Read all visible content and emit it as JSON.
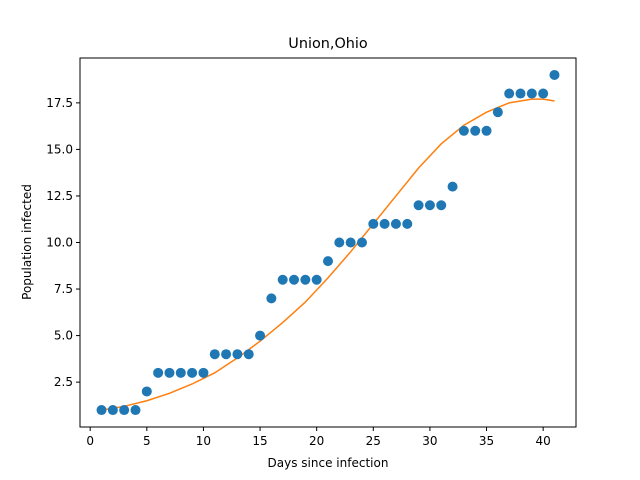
{
  "chart_data": {
    "type": "scatter",
    "title": "Union,Ohio",
    "xlabel": "Days since infection",
    "ylabel": "Population infected",
    "xlim": [
      -0.9,
      42.9
    ],
    "ylim": [
      0.09,
      19.91
    ],
    "xticks": [
      0,
      5,
      10,
      15,
      20,
      25,
      30,
      35,
      40
    ],
    "yticks": [
      2.5,
      5.0,
      7.5,
      10.0,
      12.5,
      15.0,
      17.5
    ],
    "ytick_labels": [
      "2.5",
      "5.0",
      "7.5",
      "10.0",
      "12.5",
      "15.0",
      "17.5"
    ],
    "grid": false,
    "series": [
      {
        "kind": "points",
        "color": "#1f77b4",
        "x": [
          1,
          2,
          3,
          4,
          5,
          6,
          7,
          8,
          9,
          10,
          11,
          12,
          13,
          14,
          15,
          16,
          17,
          18,
          19,
          20,
          21,
          22,
          23,
          24,
          25,
          26,
          27,
          28,
          29,
          30,
          31,
          32,
          33,
          34,
          35,
          36,
          37,
          38,
          39,
          40,
          41
        ],
        "y": [
          1,
          1,
          1,
          1,
          2,
          3,
          3,
          3,
          3,
          3,
          4,
          4,
          4,
          4,
          5,
          7,
          8,
          8,
          8,
          8,
          9,
          10,
          10,
          10,
          11,
          11,
          11,
          11,
          12,
          12,
          12,
          13,
          16,
          16,
          16,
          17,
          18,
          18,
          18,
          18,
          19
        ]
      },
      {
        "kind": "line",
        "color": "#ff7f0e",
        "x": [
          1,
          3,
          5,
          7,
          9,
          11,
          13,
          15,
          17,
          19,
          21,
          23,
          25,
          27,
          29,
          31,
          33,
          35,
          37,
          39,
          40,
          41
        ],
        "y": [
          1.0,
          1.2,
          1.5,
          1.9,
          2.4,
          3.0,
          3.8,
          4.7,
          5.7,
          6.8,
          8.1,
          9.5,
          11.0,
          12.5,
          14.0,
          15.3,
          16.3,
          17.0,
          17.5,
          17.7,
          17.7,
          17.6
        ]
      }
    ]
  }
}
